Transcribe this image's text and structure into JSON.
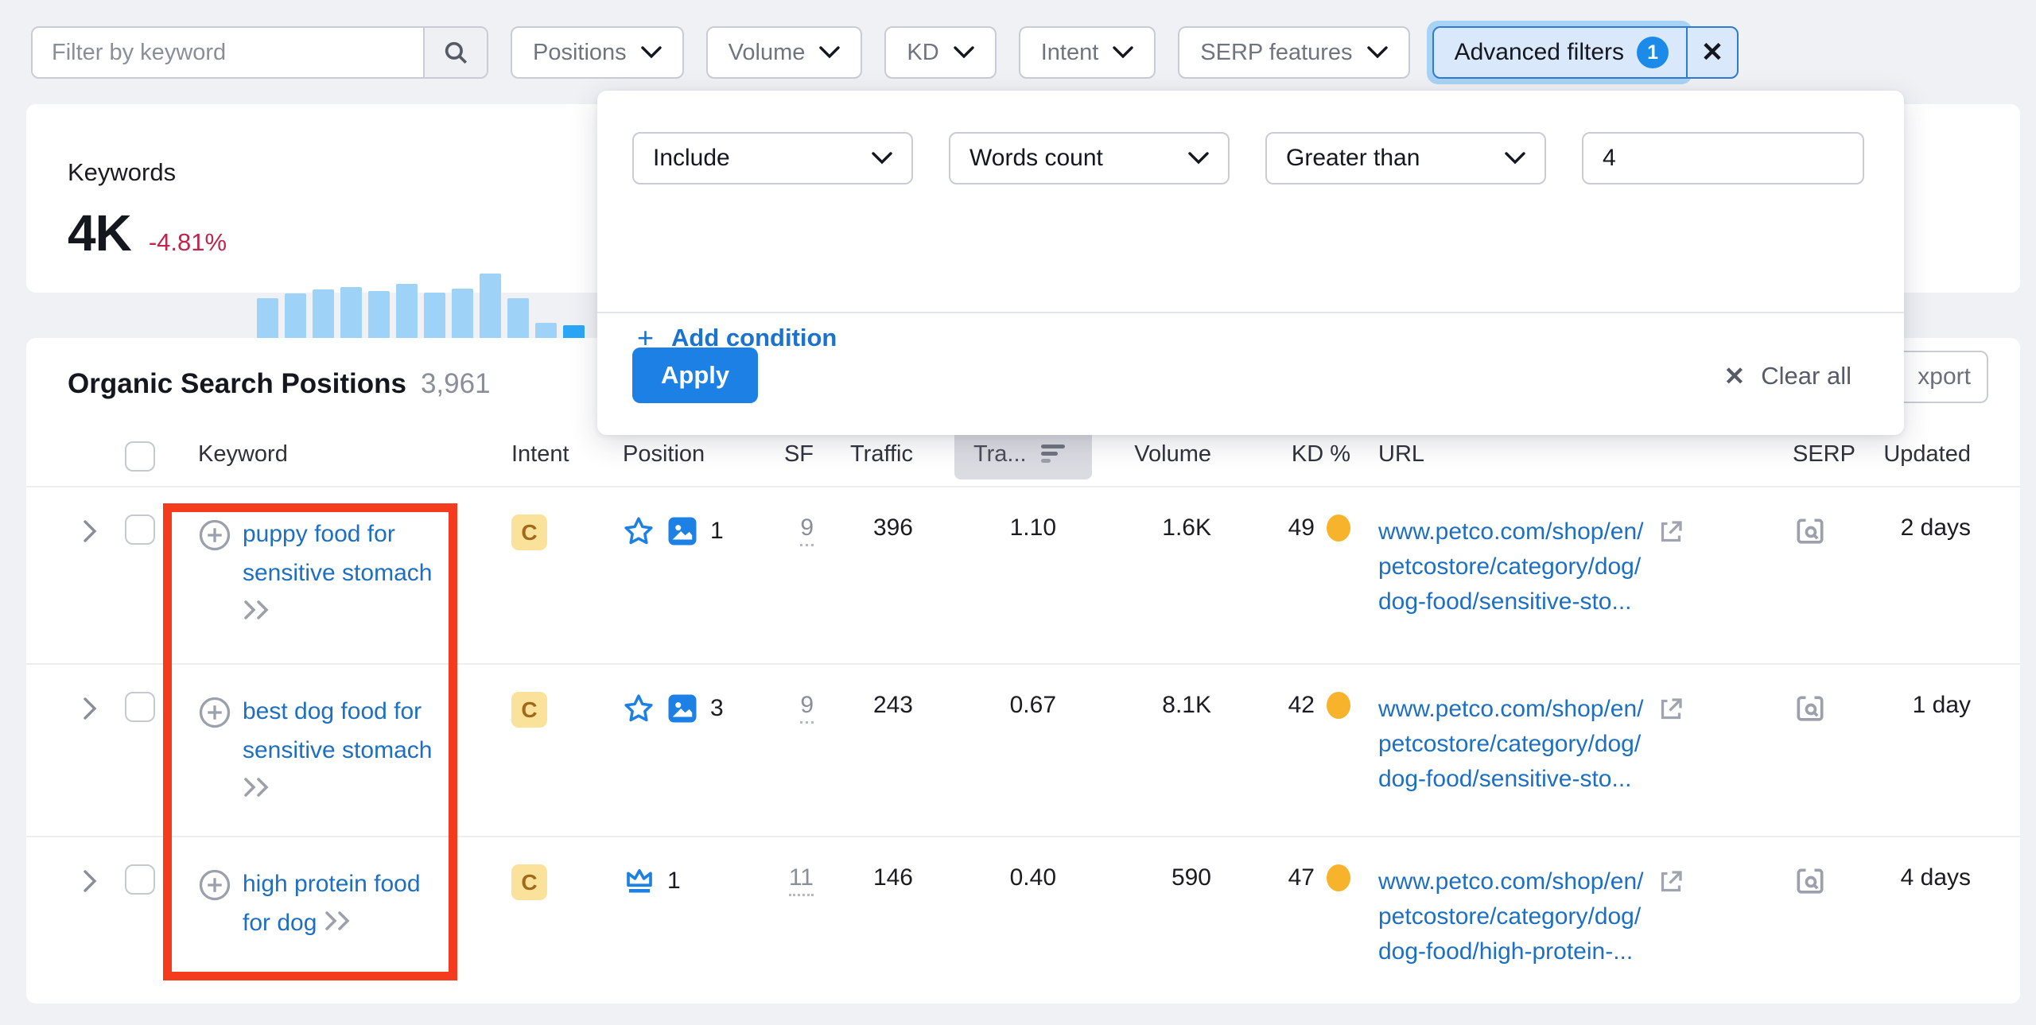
{
  "colors": {
    "accent_blue": "#1C80E5",
    "link_blue": "#1D6FC2",
    "intent_badge_bg": "#FBE29B",
    "intent_badge_text": "#A2681B",
    "kd_dot": "#F7B32B",
    "red_box": "#F43B1D",
    "bar": "#9ED2F7",
    "bar_active": "#2BA6F7",
    "change_red": "#C2254B"
  },
  "toolbar": {
    "search_placeholder": "Filter by keyword",
    "dropdowns": [
      {
        "label": "Positions"
      },
      {
        "label": "Volume"
      },
      {
        "label": "KD"
      },
      {
        "label": "Intent"
      },
      {
        "label": "SERP features"
      }
    ],
    "advanced_filters": {
      "label": "Advanced filters",
      "badge": "1",
      "close": "✕"
    }
  },
  "summary": {
    "title": "Keywords",
    "value": "4K",
    "change": "-4.81%",
    "chart": {
      "type": "bar",
      "values": [
        70,
        76,
        81,
        84,
        79,
        88,
        77,
        82,
        100,
        70,
        41,
        38
      ],
      "active_index": 11,
      "title": "Keywords trend sparkline"
    }
  },
  "advanced_panel": {
    "condition_type": "Include",
    "field": "Words count",
    "operator": "Greater than",
    "value": "4",
    "add_condition": "Add condition",
    "add_plus": "+",
    "apply": "Apply",
    "clear_all": "Clear all",
    "clear_x": "✕"
  },
  "section": {
    "title": "Organic Search Positions",
    "count": "3,961",
    "export_visible": "xport"
  },
  "table": {
    "headers": {
      "keyword": "Keyword",
      "intent": "Intent",
      "position": "Position",
      "sf": "SF",
      "traffic": "Traffic",
      "traffic_sorted": "Tra...",
      "volume": "Volume",
      "kd": "KD %",
      "url": "URL",
      "serp": "SERP",
      "updated": "Updated"
    },
    "rows": [
      {
        "keyword": "puppy food for sensitive stomach",
        "intent": "C",
        "position": "1",
        "sf": "9",
        "traffic": "396",
        "traffic_pct": "1.10",
        "volume": "1.6K",
        "kd": "49",
        "url_lines": [
          "www.petco.com/shop/en/",
          "petcostore/category/dog/",
          "dog-food/sensitive-sto..."
        ],
        "updated": "2 days"
      },
      {
        "keyword": "best dog food for sensitive stomach",
        "intent": "C",
        "position": "3",
        "sf": "9",
        "traffic": "243",
        "traffic_pct": "0.67",
        "volume": "8.1K",
        "kd": "42",
        "url_lines": [
          "www.petco.com/shop/en/",
          "petcostore/category/dog/",
          "dog-food/sensitive-sto..."
        ],
        "updated": "1 day"
      },
      {
        "keyword": "high protein food for dog",
        "intent": "C",
        "position": "1",
        "sf": "11",
        "traffic": "146",
        "traffic_pct": "0.40",
        "volume": "590",
        "kd": "47",
        "url_lines": [
          "www.petco.com/shop/en/",
          "petcostore/category/dog/",
          "dog-food/high-protein-..."
        ],
        "updated": "4 days"
      }
    ]
  },
  "icons": {
    "search": "magnifier",
    "chevron-down": "v",
    "close": "✕",
    "plus-circle": "⊕",
    "double-chevron": "»",
    "star": "☆ outline star",
    "image": "picture thumbnail",
    "crown": "crown outline",
    "external-link": "arrow out of box",
    "serp-preview": "window with magnifier",
    "sort-desc": "three shrinking bars",
    "kd-dot": "orange circle"
  }
}
